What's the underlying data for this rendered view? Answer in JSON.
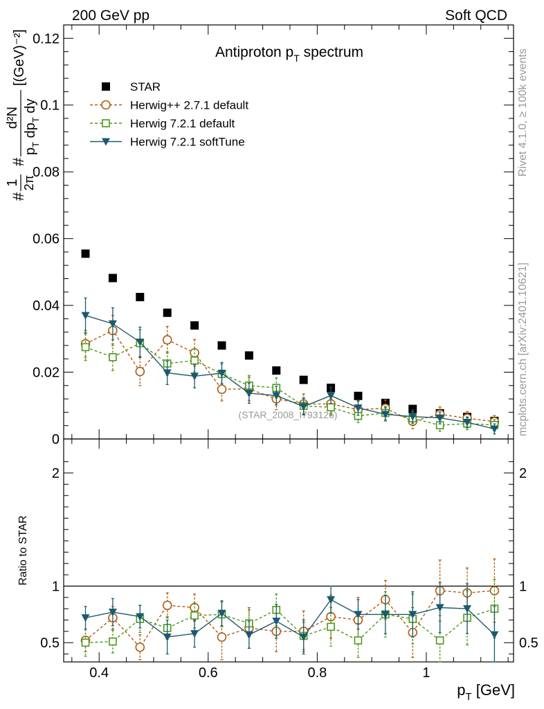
{
  "header": {
    "left": "200 GeV pp",
    "right": "Soft QCD"
  },
  "side_labels": {
    "rivet": "Rivet 4.1.0, ≥ 100k events",
    "site": "mcplots.cern.ch [arXiv:2401.10621]"
  },
  "chart_data": [
    {
      "type": "scatter",
      "panel": "main",
      "title": "Antiproton p_T spectrum",
      "title_main": "Antiproton p",
      "title_sub": "T",
      "title_tail": " spectrum",
      "ylabel": "#1/2π #d²N/p_T dp_T dy [(GeV)⁻²]",
      "ylabel_parts": {
        "frac1_num": "1",
        "frac1_den": "2π",
        "frac2_num": "d²N",
        "frac2_den": "p",
        "frac2_den_sub": "T",
        "frac2_den_tail": " dp",
        "frac2_den_sub2": "T",
        "frac2_den_tail2": " dy",
        "hash": "#",
        "units": "[(GeV)⁻²]"
      },
      "watermark": "(STAR_2008_I793126)",
      "xlim": [
        0.335,
        1.16
      ],
      "ylim": [
        0,
        0.124
      ],
      "yticks": [
        0,
        0.02,
        0.04,
        0.06,
        0.08,
        0.1,
        0.12
      ],
      "ytick_labels": [
        "0",
        "0.02",
        "0.04",
        "0.06",
        "0.08",
        "0.1",
        "0.12"
      ],
      "x": [
        0.375,
        0.425,
        0.475,
        0.525,
        0.575,
        0.625,
        0.675,
        0.725,
        0.775,
        0.825,
        0.875,
        0.925,
        0.975,
        1.025,
        1.075,
        1.125
      ],
      "series": [
        {
          "name": "STAR",
          "color": "#000000",
          "marker": "square-filled",
          "line": false,
          "values": [
            0.0555,
            0.0482,
            0.0425,
            0.0378,
            0.034,
            0.028,
            0.025,
            0.0205,
            0.0177,
            0.0153,
            0.0129,
            0.0108,
            0.009,
            0.0077,
            0.0066,
            0.0054
          ],
          "errors": [
            0,
            0,
            0,
            0,
            0,
            0,
            0,
            0,
            0,
            0,
            0,
            0,
            0,
            0,
            0,
            0
          ]
        },
        {
          "name": "Herwig++ 2.7.1 default",
          "color": "#b05b10",
          "marker": "circle-open",
          "line": "dashed",
          "values": [
            0.0285,
            0.0325,
            0.0202,
            0.0297,
            0.0258,
            0.0149,
            0.015,
            0.012,
            0.0105,
            0.0105,
            0.0088,
            0.0092,
            0.0053,
            0.0074,
            0.0062,
            0.0052
          ],
          "errors": [
            0.004,
            0.0045,
            0.0042,
            0.004,
            0.004,
            0.0035,
            0.0035,
            0.0032,
            0.003,
            0.003,
            0.0025,
            0.0025,
            0.0022,
            0.0022,
            0.002,
            0.0018
          ]
        },
        {
          "name": "Herwig 7.2.1 default",
          "color": "#4a9a1a",
          "marker": "square-open",
          "line": "dashed",
          "values": [
            0.0275,
            0.0245,
            0.0287,
            0.0226,
            0.0235,
            0.0195,
            0.016,
            0.0153,
            0.0099,
            0.0095,
            0.0069,
            0.0078,
            0.0062,
            0.0041,
            0.0046,
            0.0042
          ],
          "errors": [
            0.004,
            0.004,
            0.004,
            0.0035,
            0.0035,
            0.003,
            0.003,
            0.003,
            0.0025,
            0.0025,
            0.002,
            0.002,
            0.002,
            0.0018,
            0.0018,
            0.0016
          ]
        },
        {
          "name": "Herwig 7.2.1 softTune",
          "color": "#1b5a6e",
          "marker": "triangle-down-filled",
          "line": "solid",
          "values": [
            0.037,
            0.0345,
            0.029,
            0.0198,
            0.0188,
            0.0197,
            0.0137,
            0.013,
            0.0097,
            0.013,
            0.0093,
            0.0074,
            0.0067,
            0.0063,
            0.005,
            0.003
          ],
          "errors": [
            0.0052,
            0.0048,
            0.0045,
            0.0035,
            0.0035,
            0.0032,
            0.003,
            0.0028,
            0.0025,
            0.0025,
            0.0022,
            0.002,
            0.002,
            0.0018,
            0.0016,
            0.0015
          ]
        }
      ],
      "legend": "top-left"
    },
    {
      "type": "scatter",
      "panel": "ratio",
      "ylabel": "Ratio to STAR",
      "xlabel": "p_T [GeV]",
      "xlabel_main": "p",
      "xlabel_sub": "T",
      "xlabel_tail": " [GeV]",
      "xlim": [
        0.335,
        1.16
      ],
      "ylim": [
        0.33,
        2.3
      ],
      "xticks": [
        0.4,
        0.6,
        0.8,
        1.0
      ],
      "xtick_labels": [
        "0.4",
        "0.6",
        "0.8",
        "1"
      ],
      "yticks": [
        0.5,
        1,
        2
      ],
      "ytick_labels": [
        "0.5",
        "1",
        "2"
      ],
      "reference_line": 1,
      "x": [
        0.375,
        0.425,
        0.475,
        0.525,
        0.575,
        0.625,
        0.675,
        0.725,
        0.775,
        0.825,
        0.875,
        0.925,
        0.975,
        1.025,
        1.075,
        1.125
      ],
      "series": [
        {
          "name": "Herwig++ 2.7.1 default",
          "color": "#b05b10",
          "marker": "circle-open",
          "line": "dashed",
          "values": [
            0.52,
            0.72,
            0.46,
            0.83,
            0.81,
            0.55,
            0.63,
            0.6,
            0.6,
            0.73,
            0.7,
            0.88,
            0.59,
            0.96,
            0.94,
            0.96
          ],
          "errors": [
            0.1,
            0.1,
            0.11,
            0.11,
            0.12,
            0.2,
            0.18,
            0.18,
            0.18,
            0.19,
            0.2,
            0.17,
            0.22,
            0.27,
            0.22,
            0.28
          ]
        },
        {
          "name": "Herwig 7.2.1 default",
          "color": "#4a9a1a",
          "marker": "square-open",
          "line": "dashed",
          "values": [
            0.5,
            0.51,
            0.71,
            0.63,
            0.74,
            0.75,
            0.67,
            0.79,
            0.56,
            0.64,
            0.52,
            0.75,
            0.71,
            0.52,
            0.72,
            0.8
          ],
          "errors": [
            0.12,
            0.1,
            0.12,
            0.1,
            0.11,
            0.11,
            0.12,
            0.14,
            0.12,
            0.17,
            0.15,
            0.2,
            0.22,
            0.22,
            0.24,
            0.26
          ]
        },
        {
          "name": "Herwig 7.2.1 softTune",
          "color": "#1b5a6e",
          "marker": "triangle-down-filled",
          "line": "solid",
          "values": [
            0.72,
            0.77,
            0.73,
            0.55,
            0.58,
            0.76,
            0.57,
            0.69,
            0.55,
            0.88,
            0.75,
            0.75,
            0.75,
            0.81,
            0.8,
            0.57
          ],
          "errors": [
            0.1,
            0.12,
            0.1,
            0.15,
            0.12,
            0.11,
            0.12,
            0.15,
            0.15,
            0.12,
            0.13,
            0.17,
            0.2,
            0.22,
            0.22,
            0.25
          ]
        }
      ]
    }
  ]
}
